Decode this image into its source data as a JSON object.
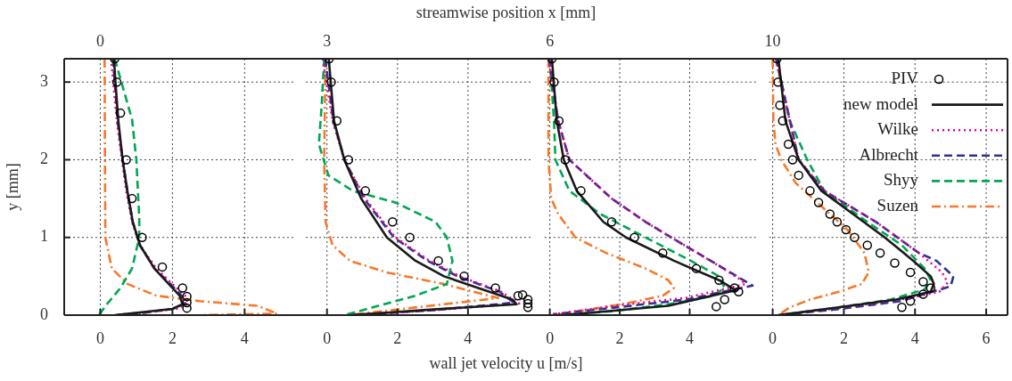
{
  "chart_data": [
    {
      "type": "line",
      "title": "0",
      "ylabel": "y [mm]",
      "xlim": [
        -1,
        5.4
      ],
      "ylim": [
        0,
        3.3
      ],
      "xticks": [
        0,
        2,
        4
      ],
      "yticks": [
        0,
        1,
        2,
        3
      ],
      "grid": true,
      "series": [
        {
          "type": "scatter",
          "marker": "circle",
          "color": "#000000",
          "x": [
            0.4,
            0.46,
            0.56,
            0.72,
            0.88,
            1.16,
            1.72,
            2.28,
            2.4,
            2.4,
            2.4
          ],
          "values": [
            3.3,
            3.0,
            2.6,
            2.0,
            1.5,
            1.0,
            0.62,
            0.35,
            0.24,
            0.16,
            0.09
          ]
        },
        {
          "line_style": "solid",
          "color": "#1a1a1a",
          "x": [
            0.38,
            0.42,
            0.5,
            0.62,
            0.75,
            0.9,
            1.1,
            1.5,
            1.9,
            2.2,
            2.28,
            2.0,
            1.2,
            0.4
          ],
          "values": [
            3.3,
            3.0,
            2.5,
            2.0,
            1.6,
            1.2,
            0.9,
            0.6,
            0.4,
            0.25,
            0.14,
            0.08,
            0.04,
            0
          ]
        },
        {
          "line_style": "dotted",
          "color": "#ec008c",
          "x": [
            0.3,
            0.36,
            0.46,
            0.6,
            0.72,
            0.88,
            1.1,
            1.55,
            2.0,
            2.35,
            2.45,
            2.1,
            1.2,
            0.4
          ],
          "values": [
            3.3,
            3.0,
            2.5,
            2.0,
            1.6,
            1.2,
            0.9,
            0.6,
            0.4,
            0.25,
            0.15,
            0.08,
            0.03,
            0
          ]
        },
        {
          "line_style": "dashed",
          "color": "#2e3192",
          "x": [
            0.35,
            0.4,
            0.48,
            0.62,
            0.75,
            0.9,
            1.1,
            1.5,
            1.95,
            2.25,
            2.35,
            2.0,
            1.2,
            0.4
          ],
          "values": [
            3.3,
            3.0,
            2.5,
            2.0,
            1.6,
            1.2,
            0.9,
            0.6,
            0.4,
            0.25,
            0.15,
            0.08,
            0.03,
            0
          ]
        },
        {
          "line_style": "dashed",
          "color": "#00a651",
          "x": [
            0.4,
            0.88,
            1.0,
            1.08,
            1.08,
            0.88,
            0.56,
            0.2,
            -0.04
          ],
          "values": [
            3.3,
            2.52,
            2.0,
            1.25,
            1.0,
            0.6,
            0.35,
            0.15,
            0
          ]
        },
        {
          "line_style": "dashdot",
          "color": "#f7782a",
          "x": [
            0.12,
            0.13,
            0.14,
            0.32,
            0.76,
            1.56,
            2.76,
            4.36,
            4.9,
            2.8
          ],
          "values": [
            3.3,
            2.0,
            1.0,
            0.6,
            0.4,
            0.25,
            0.18,
            0.12,
            0.02,
            0
          ]
        }
      ]
    },
    {
      "type": "line",
      "title": "3",
      "xlabel": "wall jet velocity u [m/s]",
      "x2label": "streamwise position x [mm]",
      "xlim": [
        -0.6,
        5.85
      ],
      "ylim": [
        0,
        3.3
      ],
      "xticks": [
        0,
        2,
        4
      ],
      "yticks": [
        0,
        1,
        2,
        3
      ],
      "grid": true,
      "tick_labels": "x",
      "series": [
        {
          "type": "scatter",
          "marker": "circle",
          "color": "#000000",
          "x": [
            0.06,
            0.12,
            0.28,
            0.61,
            1.09,
            1.86,
            2.35,
            3.16,
            3.89,
            4.78,
            5.42,
            5.55,
            5.7,
            5.7,
            5.7
          ],
          "values": [
            3.3,
            3.0,
            2.5,
            2.0,
            1.6,
            1.2,
            1.0,
            0.7,
            0.5,
            0.35,
            0.25,
            0.26,
            0.2,
            0.15,
            0.1
          ]
        },
        {
          "line_style": "solid",
          "color": "#1a1a1a",
          "x": [
            0.05,
            0.2,
            0.49,
            0.97,
            1.7,
            2.51,
            3.32,
            4.29,
            5.26,
            5.38,
            2.92,
            0.69
          ],
          "values": [
            3.3,
            2.5,
            2.0,
            1.5,
            1.0,
            0.7,
            0.5,
            0.35,
            0.2,
            0.14,
            0.07,
            0
          ]
        },
        {
          "line_style": "dotted",
          "color": "#ec008c",
          "x": [
            -0.12,
            0.16,
            0.49,
            1.09,
            1.94,
            2.91,
            3.77,
            4.94,
            5.45,
            2.92,
            0.69
          ],
          "values": [
            3.3,
            2.5,
            2.0,
            1.5,
            1.0,
            0.7,
            0.5,
            0.3,
            0.15,
            0.06,
            0
          ]
        },
        {
          "line_style": "dashed",
          "color": "#2e3192",
          "x": [
            -0.05,
            0.18,
            0.5,
            1.05,
            1.9,
            2.85,
            3.7,
            4.9,
            5.3,
            2.9,
            0.69
          ],
          "values": [
            3.3,
            2.5,
            2.0,
            1.5,
            1.0,
            0.7,
            0.5,
            0.3,
            0.16,
            0.06,
            0
          ]
        },
        {
          "line_style": "dashed",
          "color": "#00a651",
          "x": [
            -0.08,
            -0.15,
            -0.23,
            0.04,
            0.73,
            1.94,
            3.08,
            3.4,
            3.56,
            3.4,
            2.51,
            1.3,
            0.49
          ],
          "values": [
            3.3,
            2.7,
            2.2,
            1.8,
            1.6,
            1.45,
            1.2,
            1.0,
            0.7,
            0.4,
            0.25,
            0.1,
            0
          ]
        },
        {
          "line_style": "dashdot",
          "color": "#f7782a",
          "x": [
            -0.04,
            -0.08,
            -0.04,
            0.16,
            0.65,
            1.7,
            3.32,
            4.86,
            0.57
          ],
          "values": [
            3.3,
            2.0,
            1.2,
            0.9,
            0.7,
            0.55,
            0.4,
            0.22,
            0
          ]
        }
      ]
    },
    {
      "type": "line",
      "title": "6",
      "xlim": [
        -0.15,
        5.9
      ],
      "ylim": [
        0,
        3.3
      ],
      "xticks": [
        0,
        2,
        4
      ],
      "yticks": [
        0,
        1,
        2,
        3
      ],
      "grid": true,
      "tick_labels": "x",
      "series": [
        {
          "type": "scatter",
          "marker": "circle",
          "color": "#000000",
          "x": [
            0.06,
            0.12,
            0.26,
            0.44,
            0.89,
            1.77,
            2.42,
            3.23,
            4.19,
            4.84,
            5.28,
            5.4,
            5.0,
            4.76
          ],
          "values": [
            3.3,
            3.0,
            2.5,
            2.0,
            1.6,
            1.2,
            1.0,
            0.8,
            0.6,
            0.45,
            0.35,
            0.3,
            0.2,
            0.11
          ]
        },
        {
          "line_style": "solid",
          "color": "#1a1a1a",
          "x": [
            0.06,
            0.2,
            0.4,
            0.77,
            1.53,
            2.18,
            3.55,
            4.84,
            5.32,
            3.39,
            0.4
          ],
          "values": [
            3.3,
            2.5,
            2.0,
            1.6,
            1.2,
            1.0,
            0.7,
            0.45,
            0.32,
            0.12,
            0
          ]
        },
        {
          "line_style": "dotted",
          "color": "#ec008c",
          "x": [
            -0.04,
            0.24,
            0.56,
            1.77,
            2.74,
            3.47,
            4.6,
            5.48,
            5.6,
            3.87,
            2.02,
            0.08
          ],
          "values": [
            3.3,
            2.5,
            2.0,
            1.5,
            1.2,
            1.0,
            0.7,
            0.45,
            0.4,
            0.22,
            0.13,
            0.01
          ]
        },
        {
          "line_style": "dashed",
          "color": "#2e3192",
          "x": [
            -0.02,
            0.24,
            0.56,
            1.77,
            2.74,
            3.47,
            4.6,
            5.5,
            5.8,
            3.9,
            2.1,
            0.1
          ],
          "values": [
            3.3,
            2.5,
            2.0,
            1.5,
            1.2,
            1.0,
            0.7,
            0.46,
            0.38,
            0.2,
            0.11,
            0.01
          ]
        },
        {
          "line_style": "dashed",
          "color": "#00a651",
          "x": [
            0,
            0.12,
            0.16,
            0.56,
            1.45,
            2.74,
            4.03,
            4.84,
            5.0,
            4.68,
            3.55,
            1.77,
            0.24
          ],
          "values": [
            3.3,
            2.5,
            2.0,
            1.6,
            1.3,
            1.0,
            0.7,
            0.5,
            0.35,
            0.25,
            0.15,
            0.05,
            0
          ]
        },
        {
          "line_style": "dashdot",
          "color": "#f7782a",
          "x": [
            -0.04,
            -0.04,
            0.04,
            0.24,
            0.73,
            1.61,
            2.74,
            3.39,
            3.55,
            3.23,
            2.18,
            0.81,
            0.16
          ],
          "values": [
            3.3,
            2.0,
            1.5,
            1.3,
            1.0,
            0.8,
            0.6,
            0.45,
            0.35,
            0.25,
            0.15,
            0.05,
            0
          ]
        }
      ]
    },
    {
      "type": "line",
      "title": "10",
      "xlim": [
        -0.1,
        6.6
      ],
      "ylim": [
        0,
        3.3
      ],
      "xticks": [
        0,
        2,
        4,
        6
      ],
      "yticks": [
        0,
        1,
        2,
        3
      ],
      "grid": true,
      "tick_labels": "x",
      "legend": "top right",
      "series": [
        {
          "name": "PIV",
          "type": "scatter",
          "marker": "circle",
          "color": "#000000",
          "x": [
            0.12,
            0.15,
            0.2,
            0.28,
            0.44,
            0.56,
            0.73,
            1.05,
            1.29,
            1.61,
            1.81,
            2.06,
            2.3,
            2.66,
            3.02,
            3.43,
            3.87,
            4.23,
            4.44,
            4.23,
            3.87,
            3.63
          ],
          "values": [
            3.3,
            3.0,
            2.7,
            2.5,
            2.2,
            2.0,
            1.8,
            1.6,
            1.45,
            1.3,
            1.2,
            1.1,
            1.0,
            0.9,
            0.8,
            0.67,
            0.55,
            0.43,
            0.35,
            0.27,
            0.18,
            0.1
          ]
        },
        {
          "name": "new model",
          "line_style": "solid",
          "color": "#1a1a1a",
          "x": [
            0.16,
            0.36,
            0.73,
            1.37,
            2.26,
            3.15,
            3.95,
            4.44,
            4.53,
            4.44,
            3.47,
            1.85,
            0.16
          ],
          "values": [
            3.3,
            2.5,
            2.0,
            1.6,
            1.3,
            1.0,
            0.7,
            0.5,
            0.4,
            0.3,
            0.2,
            0.1,
            0
          ]
        },
        {
          "name": "Wilke",
          "line_style": "dotted",
          "color": "#ec008c",
          "x": [
            0.08,
            0.73,
            1.45,
            2.9,
            4.11,
            4.76,
            4.92,
            4.68,
            3.47,
            1.85,
            0.16
          ],
          "values": [
            3.3,
            2.0,
            1.6,
            1.2,
            0.8,
            0.55,
            0.42,
            0.3,
            0.19,
            0.09,
            0
          ]
        },
        {
          "name": "Albrecht",
          "line_style": "dashed",
          "color": "#2e3192",
          "x": [
            0.1,
            0.73,
            1.45,
            2.9,
            4.11,
            4.6,
            5.08,
            5.0,
            3.6,
            1.9,
            0.2
          ],
          "values": [
            3.3,
            2.0,
            1.6,
            1.2,
            0.8,
            0.7,
            0.5,
            0.37,
            0.18,
            0.08,
            0
          ]
        },
        {
          "name": "Shyy",
          "line_style": "dashed",
          "color": "#00a651",
          "x": [
            0.1,
            0.48,
            0.97,
            1.45,
            2.66,
            3.63,
            4.27,
            4.44,
            4.27,
            3.31,
            1.85,
            0.16
          ],
          "values": [
            3.3,
            2.5,
            2.0,
            1.6,
            1.2,
            0.9,
            0.6,
            0.45,
            0.33,
            0.2,
            0.1,
            0
          ]
        },
        {
          "name": "Suzen",
          "line_style": "dashdot",
          "color": "#f7782a",
          "x": [
            0,
            0.02,
            0.08,
            0.24,
            0.65,
            1.37,
            2.1,
            2.58,
            2.7,
            2.5,
            1.85,
            1.05,
            0.48,
            0.16
          ],
          "values": [
            3.3,
            2.5,
            2.2,
            2.0,
            1.7,
            1.4,
            1.1,
            0.8,
            0.55,
            0.4,
            0.3,
            0.2,
            0.1,
            0
          ]
        }
      ]
    }
  ]
}
